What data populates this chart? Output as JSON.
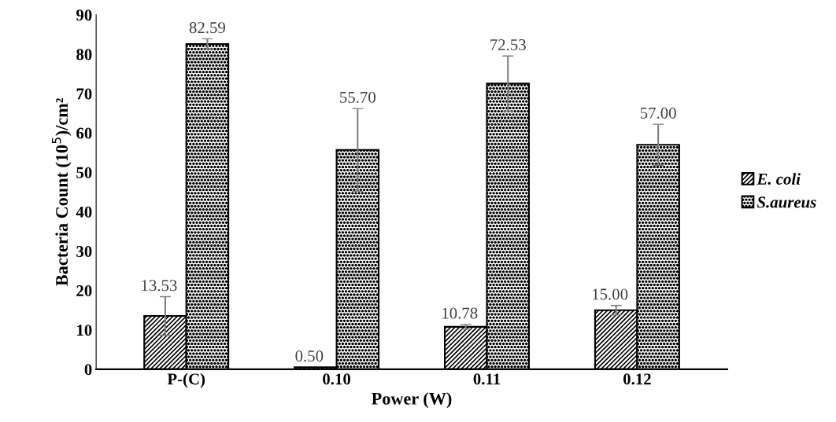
{
  "chart_data": {
    "type": "bar",
    "xlabel": "Power (W)",
    "ylabel": "Bacteria Count (10$^{5}$)/cm²",
    "categories": [
      "P-(C)",
      "0.10",
      "0.11",
      "0.12"
    ],
    "series": [
      {
        "name": "E. coli",
        "color": "#000000",
        "values": [
          13.53,
          0.5,
          10.78,
          15.0
        ],
        "errors": [
          4.9,
          null,
          0.6,
          1.2
        ],
        "value_labels": [
          "13.53",
          "0.50",
          "10.78",
          "15.00"
        ]
      },
      {
        "name": "S.aureus",
        "color": "#000000",
        "values": [
          82.59,
          55.7,
          72.53,
          57.0
        ],
        "errors": [
          1.3,
          10.5,
          7.0,
          5.2
        ],
        "value_labels": [
          "82.59",
          "55.70",
          "72.53",
          "57.00"
        ]
      }
    ],
    "ylim": [
      0,
      90
    ],
    "yticks": [
      0,
      10,
      20,
      30,
      40,
      50,
      60,
      70,
      80,
      90
    ],
    "grid": false,
    "legend": "right"
  }
}
